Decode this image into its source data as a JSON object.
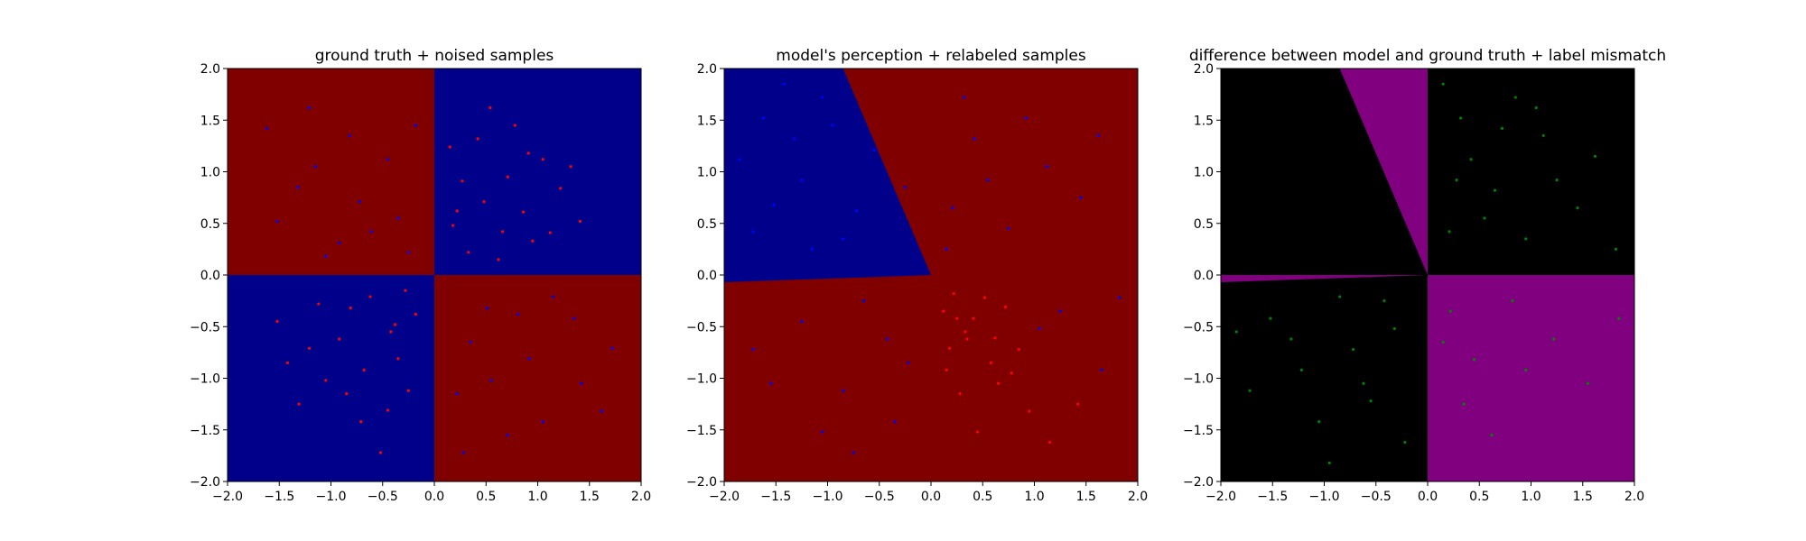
{
  "colors": {
    "red_region": "#800000",
    "blue_region": "#00008b",
    "black_region": "#000000",
    "purple_region": "#800080",
    "red_point": "#ff0000",
    "blue_point": "#0000ff",
    "green_point": "#008000",
    "axis": "#000000"
  },
  "chart_data": [
    {
      "type": "scatter",
      "title": "ground truth + noised samples",
      "xlim": [
        -2.0,
        2.0
      ],
      "ylim": [
        -2.0,
        2.0
      ],
      "xticks": [
        "−2.0",
        "−1.5",
        "−1.0",
        "−0.5",
        "0.0",
        "0.5",
        "1.0",
        "1.5",
        "2.0"
      ],
      "yticks": [
        "−2.0",
        "−1.5",
        "−1.0",
        "−0.5",
        "0.0",
        "0.5",
        "1.0",
        "1.5",
        "2.0"
      ],
      "grid": false,
      "background_regions": [
        {
          "polygon": [
            [
              -2,
              0
            ],
            [
              0,
              0
            ],
            [
              0,
              2
            ],
            [
              -2,
              2
            ]
          ],
          "color": "red_region"
        },
        {
          "polygon": [
            [
              0,
              0
            ],
            [
              2,
              0
            ],
            [
              2,
              2
            ],
            [
              0,
              2
            ]
          ],
          "color": "blue_region"
        },
        {
          "polygon": [
            [
              -2,
              -2
            ],
            [
              0,
              -2
            ],
            [
              0,
              0
            ],
            [
              -2,
              0
            ]
          ],
          "color": "blue_region"
        },
        {
          "polygon": [
            [
              0,
              -2
            ],
            [
              2,
              -2
            ],
            [
              2,
              0
            ],
            [
              0,
              0
            ]
          ],
          "color": "red_region"
        }
      ],
      "series": [
        {
          "color": "red_point",
          "values": [
            [
              0.42,
              1.32
            ],
            [
              0.71,
              0.95
            ],
            [
              0.18,
              0.48
            ],
            [
              1.05,
              1.12
            ],
            [
              0.33,
              0.22
            ],
            [
              0.86,
              0.61
            ],
            [
              1.22,
              0.84
            ],
            [
              0.54,
              1.62
            ],
            [
              0.27,
              0.91
            ],
            [
              0.95,
              0.33
            ],
            [
              1.41,
              0.52
            ],
            [
              0.62,
              0.15
            ],
            [
              0.15,
              1.24
            ],
            [
              0.78,
              1.45
            ],
            [
              1.12,
              0.41
            ],
            [
              0.48,
              0.71
            ],
            [
              0.91,
              1.18
            ],
            [
              0.22,
              0.62
            ],
            [
              1.32,
              1.05
            ],
            [
              0.66,
              0.42
            ],
            [
              -0.42,
              -0.55
            ],
            [
              -0.81,
              -0.32
            ],
            [
              -1.21,
              -0.71
            ],
            [
              -0.25,
              -1.12
            ],
            [
              -0.62,
              -0.21
            ],
            [
              -1.05,
              -1.02
            ],
            [
              -0.35,
              -0.81
            ],
            [
              -1.52,
              -0.45
            ],
            [
              -0.71,
              -1.42
            ],
            [
              -0.18,
              -0.38
            ],
            [
              -0.92,
              -0.62
            ],
            [
              -1.31,
              -1.25
            ],
            [
              -0.52,
              -1.72
            ],
            [
              -0.28,
              -0.15
            ],
            [
              -0.68,
              -0.92
            ],
            [
              -1.12,
              -0.28
            ],
            [
              -0.45,
              -1.31
            ],
            [
              -0.85,
              -1.15
            ],
            [
              -1.42,
              -0.85
            ],
            [
              -0.38,
              -0.48
            ]
          ]
        },
        {
          "color": "blue_point",
          "values": [
            [
              -0.61,
              0.42
            ],
            [
              -1.32,
              0.85
            ],
            [
              -0.82,
              1.35
            ],
            [
              -0.25,
              0.22
            ],
            [
              -1.05,
              0.18
            ],
            [
              -0.45,
              1.12
            ],
            [
              -1.62,
              1.42
            ],
            [
              -0.72,
              0.71
            ],
            [
              -1.21,
              1.62
            ],
            [
              -0.35,
              0.55
            ],
            [
              -0.92,
              0.31
            ],
            [
              -1.52,
              0.52
            ],
            [
              -0.18,
              1.45
            ],
            [
              -1.15,
              1.05
            ],
            [
              0.51,
              -0.32
            ],
            [
              0.92,
              -0.81
            ],
            [
              1.35,
              -0.42
            ],
            [
              0.22,
              -1.15
            ],
            [
              1.62,
              -1.32
            ],
            [
              0.71,
              -1.55
            ],
            [
              1.15,
              -0.21
            ],
            [
              0.35,
              -0.65
            ],
            [
              1.42,
              -1.05
            ],
            [
              0.81,
              -0.38
            ],
            [
              1.05,
              -1.42
            ],
            [
              0.28,
              -1.72
            ],
            [
              1.72,
              -0.71
            ],
            [
              0.55,
              -1.02
            ]
          ]
        }
      ]
    },
    {
      "type": "scatter",
      "title": "model's perception + relabeled samples",
      "xlim": [
        -2.0,
        2.0
      ],
      "ylim": [
        -2.0,
        2.0
      ],
      "xticks": [
        "−2.0",
        "−1.5",
        "−1.0",
        "−0.5",
        "0.0",
        "0.5",
        "1.0",
        "1.5",
        "2.0"
      ],
      "yticks": [
        "−2.0",
        "−1.5",
        "−1.0",
        "−0.5",
        "0.0",
        "0.5",
        "1.0",
        "1.5",
        "2.0"
      ],
      "grid": false,
      "background_regions": [
        {
          "polygon": [
            [
              -2,
              -2
            ],
            [
              2,
              -2
            ],
            [
              2,
              2
            ],
            [
              -2,
              2
            ]
          ],
          "color": "red_region"
        },
        {
          "polygon": [
            [
              -2,
              -0.07
            ],
            [
              0,
              0
            ],
            [
              -0.85,
              2
            ],
            [
              -2,
              2
            ]
          ],
          "color": "blue_region"
        }
      ],
      "series": [
        {
          "color": "red_point",
          "values": [
            [
              0.12,
              -0.35
            ],
            [
              0.35,
              -0.62
            ],
            [
              0.22,
              -0.18
            ],
            [
              0.58,
              -0.85
            ],
            [
              0.41,
              -0.42
            ],
            [
              0.15,
              -0.92
            ],
            [
              0.72,
              -0.31
            ],
            [
              0.28,
              -1.15
            ],
            [
              0.52,
              -0.22
            ],
            [
              0.85,
              -0.72
            ],
            [
              0.33,
              -0.55
            ],
            [
              0.65,
              -1.05
            ],
            [
              0.18,
              -0.71
            ],
            [
              0.95,
              -1.32
            ],
            [
              0.45,
              -1.52
            ],
            [
              0.78,
              -0.95
            ],
            [
              1.15,
              -1.62
            ],
            [
              1.42,
              -1.25
            ],
            [
              0.25,
              -0.42
            ],
            [
              0.62,
              -0.61
            ]
          ]
        },
        {
          "color": "blue_point",
          "values": [
            [
              -1.62,
              1.52
            ],
            [
              -1.25,
              0.92
            ],
            [
              -0.95,
              1.45
            ],
            [
              -1.72,
              0.42
            ],
            [
              -1.42,
              1.85
            ],
            [
              -0.72,
              0.62
            ],
            [
              -1.15,
              0.25
            ],
            [
              -1.85,
              1.12
            ],
            [
              -1.05,
              1.72
            ],
            [
              -0.85,
              0.35
            ],
            [
              -1.52,
              0.68
            ],
            [
              -1.32,
              1.32
            ],
            [
              -0.55,
              1.21
            ],
            [
              -0.25,
              0.85
            ],
            [
              0.21,
              0.65
            ],
            [
              0.42,
              1.32
            ],
            [
              0.75,
              0.45
            ],
            [
              1.12,
              1.05
            ],
            [
              0.32,
              1.72
            ],
            [
              1.45,
              0.75
            ],
            [
              0.92,
              1.52
            ],
            [
              0.15,
              0.25
            ],
            [
              1.62,
              1.35
            ],
            [
              0.55,
              0.92
            ],
            [
              -0.42,
              -0.62
            ],
            [
              -0.85,
              -1.12
            ],
            [
              -1.25,
              -0.45
            ],
            [
              -0.35,
              -1.42
            ],
            [
              -1.55,
              -1.05
            ],
            [
              -0.65,
              -0.25
            ],
            [
              -1.05,
              -1.52
            ],
            [
              -0.22,
              -0.85
            ],
            [
              -1.72,
              -0.72
            ],
            [
              -0.75,
              -1.72
            ],
            [
              1.25,
              -0.35
            ],
            [
              1.65,
              -0.92
            ],
            [
              1.82,
              -0.22
            ],
            [
              1.05,
              -0.52
            ]
          ]
        }
      ]
    },
    {
      "type": "scatter",
      "title": "difference between model and ground truth + label mismatch",
      "xlim": [
        -2.0,
        2.0
      ],
      "ylim": [
        -2.0,
        2.0
      ],
      "xticks": [
        "−2.0",
        "−1.5",
        "−1.0",
        "−0.5",
        "0.0",
        "0.5",
        "1.0",
        "1.5",
        "2.0"
      ],
      "yticks": [
        "−2.0",
        "−1.5",
        "−1.0",
        "−0.5",
        "0.0",
        "0.5",
        "1.0",
        "1.5",
        "2.0"
      ],
      "grid": false,
      "background_regions": [
        {
          "polygon": [
            [
              -2,
              -2
            ],
            [
              2,
              -2
            ],
            [
              2,
              2
            ],
            [
              -2,
              2
            ]
          ],
          "color": "black_region"
        },
        {
          "polygon": [
            [
              0,
              0
            ],
            [
              2,
              0
            ],
            [
              2,
              -2
            ],
            [
              0,
              -2
            ]
          ],
          "color": "purple_region"
        },
        {
          "polygon": [
            [
              0,
              0
            ],
            [
              -0.85,
              2
            ],
            [
              0,
              2
            ]
          ],
          "color": "purple_region"
        },
        {
          "polygon": [
            [
              -2,
              -0.07
            ],
            [
              0,
              0
            ],
            [
              -2,
              0
            ]
          ],
          "color": "purple_region"
        }
      ],
      "series": [
        {
          "color": "green_point",
          "values": [
            [
              0.32,
              1.52
            ],
            [
              0.65,
              0.82
            ],
            [
              1.12,
              1.35
            ],
            [
              0.21,
              0.42
            ],
            [
              0.85,
              1.72
            ],
            [
              1.45,
              0.65
            ],
            [
              0.42,
              1.12
            ],
            [
              0.95,
              0.35
            ],
            [
              1.62,
              1.15
            ],
            [
              0.15,
              1.85
            ],
            [
              0.72,
              1.42
            ],
            [
              1.25,
              0.92
            ],
            [
              0.55,
              0.55
            ],
            [
              1.05,
              1.62
            ],
            [
              1.82,
              0.25
            ],
            [
              0.28,
              0.92
            ],
            [
              -0.32,
              -0.52
            ],
            [
              -0.85,
              -0.21
            ],
            [
              -1.22,
              -0.92
            ],
            [
              -0.55,
              -1.22
            ],
            [
              -1.52,
              -0.42
            ],
            [
              -0.22,
              -1.62
            ],
            [
              -1.05,
              -1.42
            ],
            [
              -0.72,
              -0.72
            ],
            [
              -1.72,
              -1.12
            ],
            [
              -0.42,
              -0.25
            ],
            [
              -1.32,
              -0.62
            ],
            [
              -0.95,
              -1.82
            ],
            [
              -1.85,
              -0.55
            ],
            [
              -0.62,
              -1.05
            ],
            [
              0.22,
              -0.35
            ],
            [
              0.45,
              -0.82
            ],
            [
              0.82,
              -0.25
            ],
            [
              0.35,
              -1.25
            ],
            [
              1.22,
              -0.62
            ],
            [
              0.62,
              -1.55
            ],
            [
              1.55,
              -1.05
            ],
            [
              0.95,
              -0.92
            ],
            [
              1.85,
              -0.42
            ],
            [
              0.15,
              -0.65
            ]
          ]
        }
      ]
    }
  ]
}
